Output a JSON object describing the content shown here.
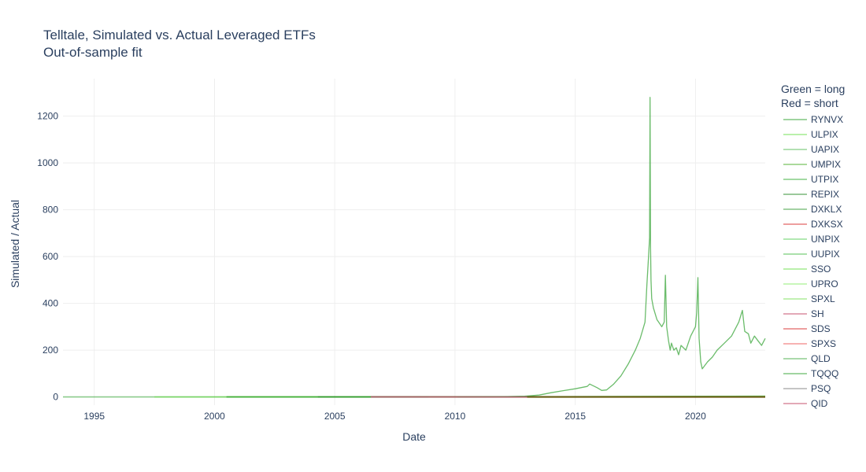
{
  "chart_data": {
    "type": "line",
    "title": "Telltale, Simulated vs. Actual Leveraged ETFs",
    "subtitle": "Out-of-sample fit",
    "xlabel": "Date",
    "ylabel": "Simulated / Actual",
    "xlim": [
      1993.7,
      2022.9
    ],
    "ylim": [
      -35,
      1360
    ],
    "x_ticks": [
      1995,
      2000,
      2005,
      2010,
      2015,
      2020
    ],
    "x_tick_labels": [
      "1995",
      "2000",
      "2005",
      "2010",
      "2015",
      "2020"
    ],
    "y_ticks": [
      0,
      200,
      400,
      600,
      800,
      1000,
      1200
    ],
    "y_tick_labels": [
      "0",
      "200",
      "400",
      "600",
      "800",
      "1000",
      "1200"
    ],
    "grid": true,
    "legend_title": [
      "Green = long",
      "Red = short"
    ],
    "legend_position": "right",
    "colors": {
      "long": "#2ca02c",
      "long_light": "#66dd44",
      "short": "#d62728",
      "neutral": "#7f7f7f"
    },
    "series": [
      {
        "name": "RYNVX",
        "color": "#2ca02c",
        "x": [
          1993.7,
          2005,
          2012.5,
          2022.9
        ],
        "y": [
          0,
          0,
          1,
          1
        ]
      },
      {
        "name": "ULPIX",
        "color": "#66dd44",
        "x": [
          1997.5,
          2008,
          2022.9
        ],
        "y": [
          0,
          0,
          1
        ]
      },
      {
        "name": "UAPIX",
        "color": "#55bb55",
        "x": [
          2000.5,
          2010,
          2022.9
        ],
        "y": [
          0,
          0,
          1
        ]
      },
      {
        "name": "UMPIX",
        "color": "#44aa22",
        "x": [
          2000.5,
          2022.9
        ],
        "y": [
          0,
          1
        ]
      },
      {
        "name": "UTPIX",
        "color": "#33aa33",
        "x": [
          2000.5,
          2022.9
        ],
        "y": [
          0,
          0
        ]
      },
      {
        "name": "REPIX",
        "color": "#228822",
        "x": [
          2004.3,
          2022.9
        ],
        "y": [
          0,
          1
        ]
      },
      {
        "name": "DXKLX",
        "color": "#339933",
        "x": [
          2006.5,
          2022.9
        ],
        "y": [
          0,
          1
        ]
      },
      {
        "name": "DXKSX",
        "color": "#d62728",
        "x": [
          2006.5,
          2022.9
        ],
        "y": [
          0,
          0
        ]
      },
      {
        "name": "UNPIX",
        "color": "#55cc55",
        "x": [
          2006.5,
          2022.9
        ],
        "y": [
          0,
          1
        ]
      },
      {
        "name": "UUPIX",
        "color": "#44bb44",
        "x": [
          2006.5,
          2022.9
        ],
        "y": [
          0,
          1
        ]
      },
      {
        "name": "SSO",
        "color": "#66dd44",
        "x": [
          2006.5,
          2022.9
        ],
        "y": [
          0,
          2
        ]
      },
      {
        "name": "UPRO",
        "color": "#88ee66",
        "x": [
          2009.5,
          2022.9
        ],
        "y": [
          0,
          3
        ]
      },
      {
        "name": "SPXL",
        "color": "#77dd55",
        "x": [
          2008.9,
          2022.9
        ],
        "y": [
          0,
          3
        ]
      },
      {
        "name": "SH",
        "color": "#c04060",
        "x": [
          2006.5,
          2022.9
        ],
        "y": [
          0,
          0
        ]
      },
      {
        "name": "SDS",
        "color": "#d62728",
        "x": [
          2006.5,
          2022.9
        ],
        "y": [
          0,
          0
        ]
      },
      {
        "name": "SPXS",
        "color": "#ee5555",
        "x": [
          2008.9,
          2022.9
        ],
        "y": [
          0,
          0
        ]
      },
      {
        "name": "QLD",
        "color": "#44aa44",
        "x": [
          2006.5,
          2022.9
        ],
        "y": [
          0,
          3
        ]
      },
      {
        "name": "TQQQ",
        "color": "#2ca02c",
        "x": [
          2010.1,
          2012.0,
          2012.9,
          2013.5,
          2014.0,
          2014.5,
          2015.0,
          2015.5,
          2015.6,
          2015.9,
          2016.1,
          2016.3,
          2016.6,
          2016.9,
          2017.2,
          2017.5,
          2017.7,
          2017.9,
          2017.98,
          2018.05,
          2018.09,
          2018.11,
          2018.13,
          2018.15,
          2018.18,
          2018.25,
          2018.4,
          2018.6,
          2018.7,
          2018.75,
          2018.8,
          2018.88,
          2018.95,
          2019.0,
          2019.1,
          2019.2,
          2019.3,
          2019.4,
          2019.6,
          2019.8,
          2020.0,
          2020.05,
          2020.1,
          2020.15,
          2020.22,
          2020.28,
          2020.5,
          2020.7,
          2020.9,
          2021.2,
          2021.5,
          2021.8,
          2021.95,
          2022.05,
          2022.2,
          2022.3,
          2022.45,
          2022.6,
          2022.75,
          2022.9
        ],
        "y": [
          0,
          1,
          3,
          8,
          18,
          27,
          35,
          45,
          55,
          40,
          28,
          30,
          55,
          90,
          140,
          200,
          250,
          320,
          480,
          600,
          680,
          1280,
          650,
          500,
          420,
          380,
          330,
          300,
          320,
          520,
          300,
          240,
          200,
          230,
          200,
          210,
          180,
          220,
          200,
          260,
          300,
          360,
          510,
          250,
          150,
          120,
          150,
          170,
          200,
          230,
          260,
          320,
          370,
          280,
          270,
          230,
          260,
          240,
          220,
          250
        ]
      },
      {
        "name": "PSQ",
        "color": "#7f7f7f",
        "x": [
          2006.5,
          2022.9
        ],
        "y": [
          0,
          0
        ]
      },
      {
        "name": "QID",
        "color": "#c04060",
        "x": [
          2006.5,
          2022.9
        ],
        "y": [
          0,
          0
        ]
      }
    ]
  }
}
